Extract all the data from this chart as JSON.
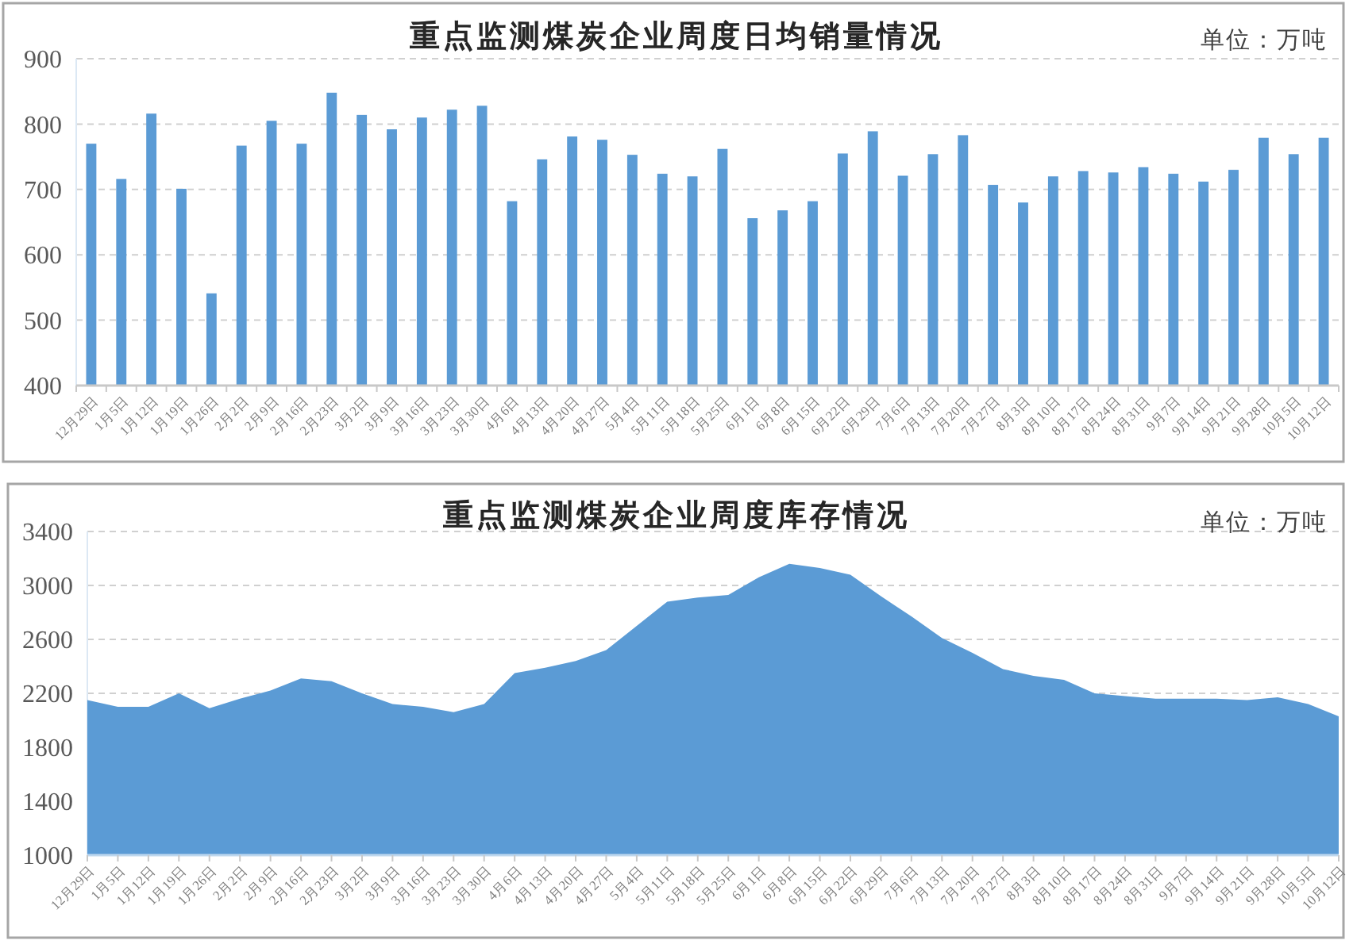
{
  "chart_data": [
    {
      "type": "bar",
      "title": "重点监测煤炭企业周度日均销量情况",
      "ylabel": "单位：万吨",
      "categories": [
        "12月29日",
        "1月5日",
        "1月12日",
        "1月19日",
        "1月26日",
        "2月2日",
        "2月9日",
        "2月16日",
        "2月23日",
        "3月2日",
        "3月9日",
        "3月16日",
        "3月23日",
        "3月30日",
        "4月6日",
        "4月13日",
        "4月20日",
        "4月27日",
        "5月4日",
        "5月11日",
        "5月18日",
        "5月25日",
        "6月1日",
        "6月8日",
        "6月15日",
        "6月22日",
        "6月29日",
        "7月6日",
        "7月13日",
        "7月20日",
        "7月27日",
        "8月3日",
        "8月10日",
        "8月17日",
        "8月24日",
        "8月31日",
        "9月7日",
        "9月14日",
        "9月21日",
        "9月28日",
        "10月5日",
        "10月12日"
      ],
      "values": [
        770,
        716,
        816,
        701,
        541,
        767,
        805,
        770,
        848,
        814,
        792,
        810,
        822,
        828,
        682,
        746,
        781,
        776,
        753,
        724,
        720,
        762,
        656,
        668,
        682,
        755,
        789,
        721,
        754,
        783,
        707,
        680,
        720,
        728,
        726,
        734,
        724,
        712,
        730,
        779,
        754,
        779
      ],
      "color": "#5b9bd5",
      "ylim": [
        400,
        900
      ],
      "yticks": [
        400,
        500,
        600,
        700,
        800,
        900
      ],
      "grid": "y"
    },
    {
      "type": "area",
      "title": "重点监测煤炭企业周度库存情况",
      "ylabel": "单位：万吨",
      "categories": [
        "12月29日",
        "1月5日",
        "1月12日",
        "1月19日",
        "1月26日",
        "2月2日",
        "2月9日",
        "2月16日",
        "2月23日",
        "3月2日",
        "3月9日",
        "3月16日",
        "3月23日",
        "3月30日",
        "4月6日",
        "4月13日",
        "4月20日",
        "4月27日",
        "5月4日",
        "5月11日",
        "5月18日",
        "5月25日",
        "6月1日",
        "6月8日",
        "6月15日",
        "6月22日",
        "6月29日",
        "7月6日",
        "7月13日",
        "7月20日",
        "7月27日",
        "8月3日",
        "8月10日",
        "8月17日",
        "8月24日",
        "8月31日",
        "9月7日",
        "9月14日",
        "9月21日",
        "9月28日",
        "10月5日",
        "10月12日"
      ],
      "values": [
        2150,
        2100,
        2100,
        2200,
        2090,
        2160,
        2220,
        2310,
        2290,
        2200,
        2120,
        2100,
        2060,
        2120,
        2350,
        2390,
        2440,
        2520,
        2700,
        2880,
        2910,
        2930,
        3060,
        3160,
        3130,
        3080,
        2920,
        2770,
        2610,
        2500,
        2380,
        2330,
        2300,
        2200,
        2180,
        2160,
        2160,
        2160,
        2150,
        2170,
        2120,
        2030
      ],
      "color": "#5b9bd5",
      "ylim": [
        1000,
        3400
      ],
      "yticks": [
        1000,
        1400,
        1800,
        2200,
        2600,
        3000,
        3400
      ],
      "grid": "y"
    }
  ]
}
